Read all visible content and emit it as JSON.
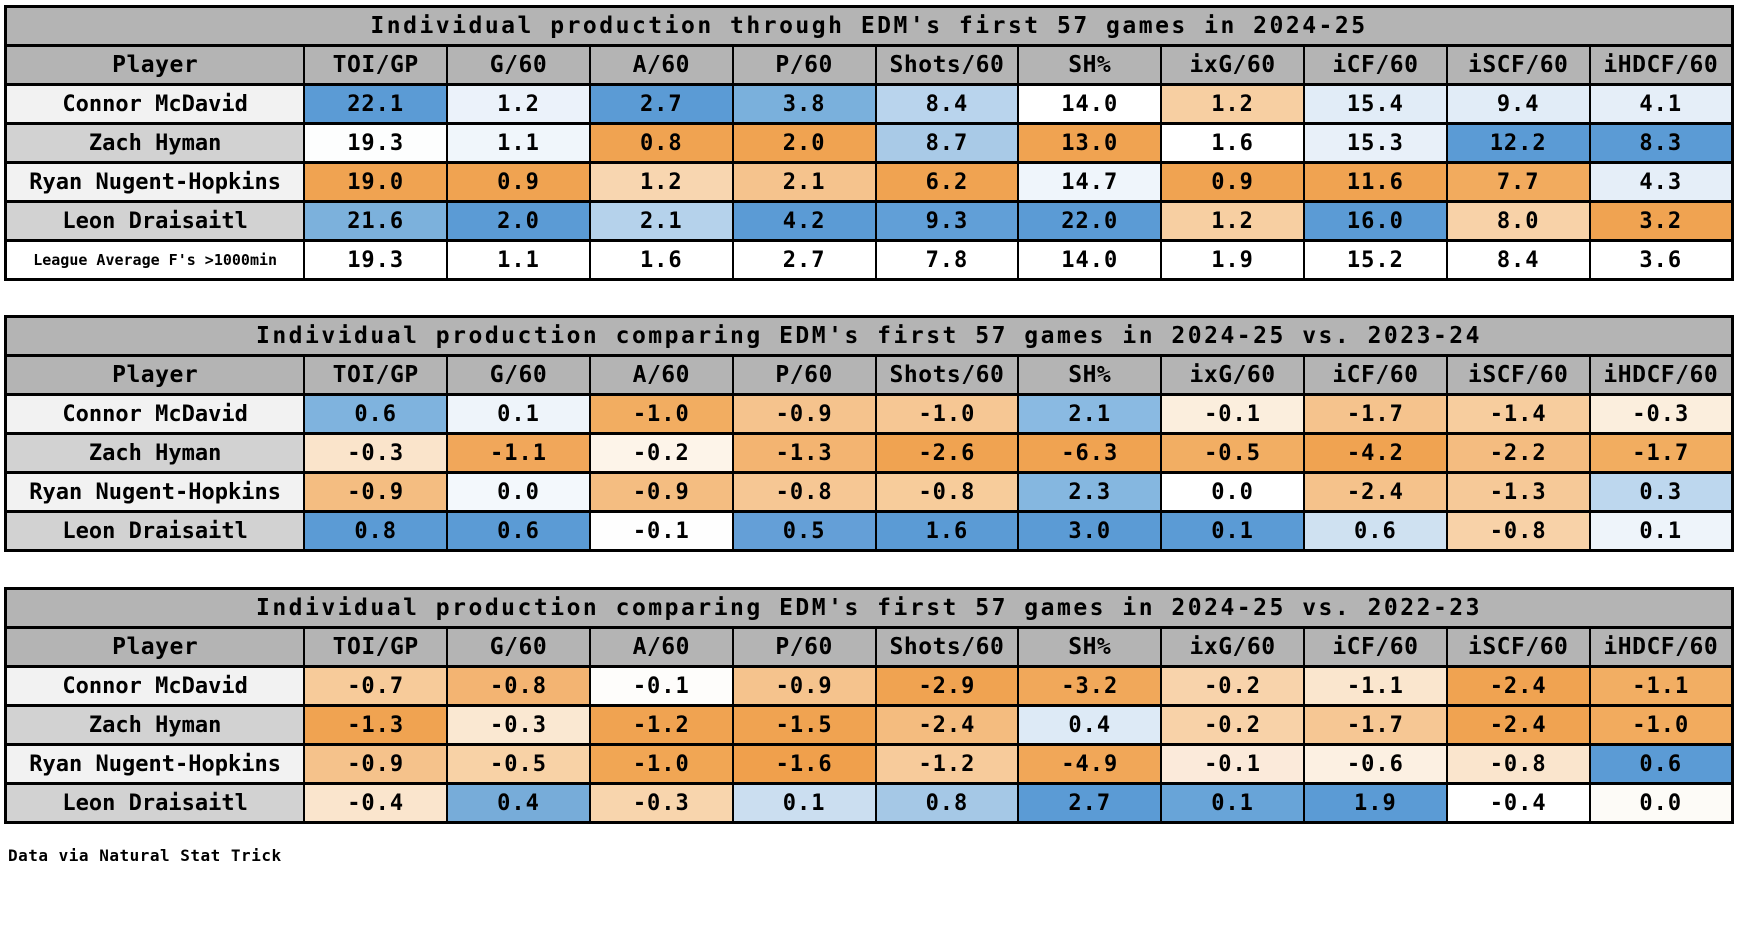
{
  "footer": "Data via Natural Stat Trick",
  "accent_colors": {
    "header_gray": "#b4b4b4",
    "row_label_light": "#f2f2f2",
    "row_label_dark": "#d2d2d2",
    "scale_blue_max": "#5b9bd5",
    "scale_orange_max": "#f0a351",
    "scale_mid": "#ffffff",
    "grid_black": "#000000"
  },
  "columns": [
    "Player",
    "TOI/GP",
    "G/60",
    "A/60",
    "P/60",
    "Shots/60",
    "SH%",
    "ixG/60",
    "iCF/60",
    "iSCF/60",
    "iHDCF/60"
  ],
  "chart_data": [
    {
      "type": "table",
      "title": "Individual production through EDM's first 57 games in 2024-25",
      "columns": [
        "Player",
        "TOI/GP",
        "G/60",
        "A/60",
        "P/60",
        "Shots/60",
        "SH%",
        "ixG/60",
        "iCF/60",
        "iSCF/60",
        "iHDCF/60"
      ],
      "rows": [
        {
          "label": "Connor McDavid",
          "label_bg": "#f2f2f2",
          "small": false,
          "values": [
            "22.1",
            "1.2",
            "2.7",
            "3.8",
            "8.4",
            "14.0",
            "1.2",
            "15.4",
            "9.4",
            "4.1"
          ],
          "colors": [
            "#5b9bd5",
            "#ebf2fa",
            "#5b9bd5",
            "#7ab0dc",
            "#b9d4ed",
            "#ffffff",
            "#f7cfa2",
            "#e1ecf7",
            "#e1ecf7",
            "#e5eef8"
          ]
        },
        {
          "label": "Zach Hyman",
          "label_bg": "#d2d2d2",
          "small": false,
          "values": [
            "19.3",
            "1.1",
            "0.8",
            "2.0",
            "8.7",
            "13.0",
            "1.6",
            "15.3",
            "12.2",
            "8.3"
          ],
          "colors": [
            "#fdfefe",
            "#f0f6fb",
            "#f0a351",
            "#f0a351",
            "#a9cae7",
            "#f0a351",
            "#ffffff",
            "#e8f0f9",
            "#5b9bd5",
            "#5b9bd5"
          ]
        },
        {
          "label": "Ryan Nugent-Hopkins",
          "label_bg": "#f2f2f2",
          "small": false,
          "values": [
            "19.0",
            "0.9",
            "1.2",
            "2.1",
            "6.2",
            "14.7",
            "0.9",
            "11.6",
            "7.7",
            "4.3"
          ],
          "colors": [
            "#f0a351",
            "#f0a351",
            "#f8d6b0",
            "#f5c38d",
            "#f0a351",
            "#eff5fb",
            "#f0a351",
            "#f0a351",
            "#f2ab5e",
            "#e5eef8"
          ]
        },
        {
          "label": "Leon Draisaitl",
          "label_bg": "#d2d2d2",
          "small": false,
          "values": [
            "21.6",
            "2.0",
            "2.1",
            "4.2",
            "9.3",
            "22.0",
            "1.2",
            "16.0",
            "8.0",
            "3.2"
          ],
          "colors": [
            "#7cb1dc",
            "#5b9bd5",
            "#b5d2eb",
            "#5b9bd5",
            "#619fd7",
            "#5b9bd5",
            "#f7cfa2",
            "#5b9bd5",
            "#f8d2a8",
            "#f0a351"
          ]
        },
        {
          "label": "League Average F's >1000min",
          "label_bg": "#ffffff",
          "small": true,
          "values": [
            "19.3",
            "1.1",
            "1.6",
            "2.7",
            "7.8",
            "14.0",
            "1.9",
            "15.2",
            "8.4",
            "3.6"
          ],
          "colors": [
            "#ffffff",
            "#ffffff",
            "#ffffff",
            "#ffffff",
            "#ffffff",
            "#ffffff",
            "#ffffff",
            "#ffffff",
            "#ffffff",
            "#ffffff"
          ]
        }
      ]
    },
    {
      "type": "table",
      "title": "Individual production comparing EDM's first 57 games in 2024-25 vs. 2023-24",
      "columns": [
        "Player",
        "TOI/GP",
        "G/60",
        "A/60",
        "P/60",
        "Shots/60",
        "SH%",
        "ixG/60",
        "iCF/60",
        "iSCF/60",
        "iHDCF/60"
      ],
      "rows": [
        {
          "label": "Connor McDavid",
          "label_bg": "#f2f2f2",
          "small": false,
          "values": [
            "0.6",
            "0.1",
            "-1.0",
            "-0.9",
            "-1.0",
            "2.1",
            "-0.1",
            "-1.7",
            "-1.4",
            "-0.3"
          ],
          "colors": [
            "#7fb3de",
            "#eef4fa",
            "#f2ad61",
            "#f5c38d",
            "#f6c794",
            "#8abae2",
            "#fbeedd",
            "#f5c38d",
            "#f7cd9e",
            "#fbeedd"
          ]
        },
        {
          "label": "Zach Hyman",
          "label_bg": "#d2d2d2",
          "small": false,
          "values": [
            "-0.3",
            "-1.1",
            "-0.2",
            "-1.3",
            "-2.6",
            "-6.3",
            "-0.5",
            "-4.2",
            "-2.2",
            "-1.7"
          ],
          "colors": [
            "#fae4cb",
            "#f1a75a",
            "#fdf4e9",
            "#f3b471",
            "#f0a351",
            "#f0a351",
            "#f2ae63",
            "#f0a351",
            "#f4bc80",
            "#f2ad60"
          ]
        },
        {
          "label": "Ryan Nugent-Hopkins",
          "label_bg": "#f2f2f2",
          "small": false,
          "values": [
            "-0.9",
            "0.0",
            "-0.9",
            "-0.8",
            "-0.8",
            "2.3",
            "0.0",
            "-2.4",
            "-1.3",
            "0.3"
          ],
          "colors": [
            "#f4bd81",
            "#f3f8fc",
            "#f4bd81",
            "#f6c794",
            "#f7cc9b",
            "#85b7e0",
            "#ffffff",
            "#f5c28b",
            "#f6c998",
            "#bdd7ee"
          ]
        },
        {
          "label": "Leon Draisaitl",
          "label_bg": "#d2d2d2",
          "small": false,
          "values": [
            "0.8",
            "0.6",
            "-0.1",
            "0.5",
            "1.6",
            "3.0",
            "0.1",
            "0.6",
            "-0.8",
            "0.1"
          ],
          "colors": [
            "#5b9bd5",
            "#5b9bd5",
            "#fefefe",
            "#649fd7",
            "#5b9bd5",
            "#5b9bd5",
            "#5b9bd5",
            "#cfe1f1",
            "#f8d2a8",
            "#eef4fa"
          ]
        }
      ]
    },
    {
      "type": "table",
      "title": "Individual production comparing EDM's first 57 games in 2024-25 vs. 2022-23",
      "columns": [
        "Player",
        "TOI/GP",
        "G/60",
        "A/60",
        "P/60",
        "Shots/60",
        "SH%",
        "ixG/60",
        "iCF/60",
        "iSCF/60",
        "iHDCF/60"
      ],
      "rows": [
        {
          "label": "Connor McDavid",
          "label_bg": "#f2f2f2",
          "small": false,
          "values": [
            "-0.7",
            "-0.8",
            "-0.1",
            "-0.9",
            "-2.9",
            "-3.2",
            "-0.2",
            "-1.1",
            "-2.4",
            "-1.1"
          ],
          "colors": [
            "#f7cb9a",
            "#f3b472",
            "#fefdfb",
            "#f5c38d",
            "#f0a351",
            "#f1a85a",
            "#f8d3ab",
            "#fae6ce",
            "#f0a351",
            "#f2ae63"
          ]
        },
        {
          "label": "Zach Hyman",
          "label_bg": "#d2d2d2",
          "small": false,
          "values": [
            "-1.3",
            "-0.3",
            "-1.2",
            "-1.5",
            "-2.4",
            "0.4",
            "-0.2",
            "-1.7",
            "-2.4",
            "-1.0"
          ],
          "colors": [
            "#f0a351",
            "#fae8d2",
            "#f0a351",
            "#f0a351",
            "#f4bc7f",
            "#ddeaf6",
            "#f8d2a8",
            "#f6c794",
            "#f0a351",
            "#f2ab5e"
          ]
        },
        {
          "label": "Ryan Nugent-Hopkins",
          "label_bg": "#f2f2f2",
          "small": false,
          "values": [
            "-0.9",
            "-0.5",
            "-1.0",
            "-1.6",
            "-1.2",
            "-4.9",
            "-0.1",
            "-0.6",
            "-0.8",
            "0.6"
          ],
          "colors": [
            "#f5c28b",
            "#f8d2a6",
            "#f1a654",
            "#f0a04c",
            "#f7cb9b",
            "#f1a758",
            "#fbeada",
            "#fcf0e2",
            "#fae5cd",
            "#5b9bd5"
          ]
        },
        {
          "label": "Leon Draisaitl",
          "label_bg": "#d2d2d2",
          "small": false,
          "values": [
            "-0.4",
            "0.4",
            "-0.3",
            "0.1",
            "0.8",
            "2.7",
            "0.1",
            "1.9",
            "-0.4",
            "0.0"
          ],
          "colors": [
            "#fae5cd",
            "#77acd9",
            "#f8d5ad",
            "#cbdef0",
            "#a5c8e6",
            "#5b9bd5",
            "#68a4d8",
            "#5b9bd5",
            "#ffffff",
            "#fdfbf7"
          ]
        }
      ]
    }
  ]
}
